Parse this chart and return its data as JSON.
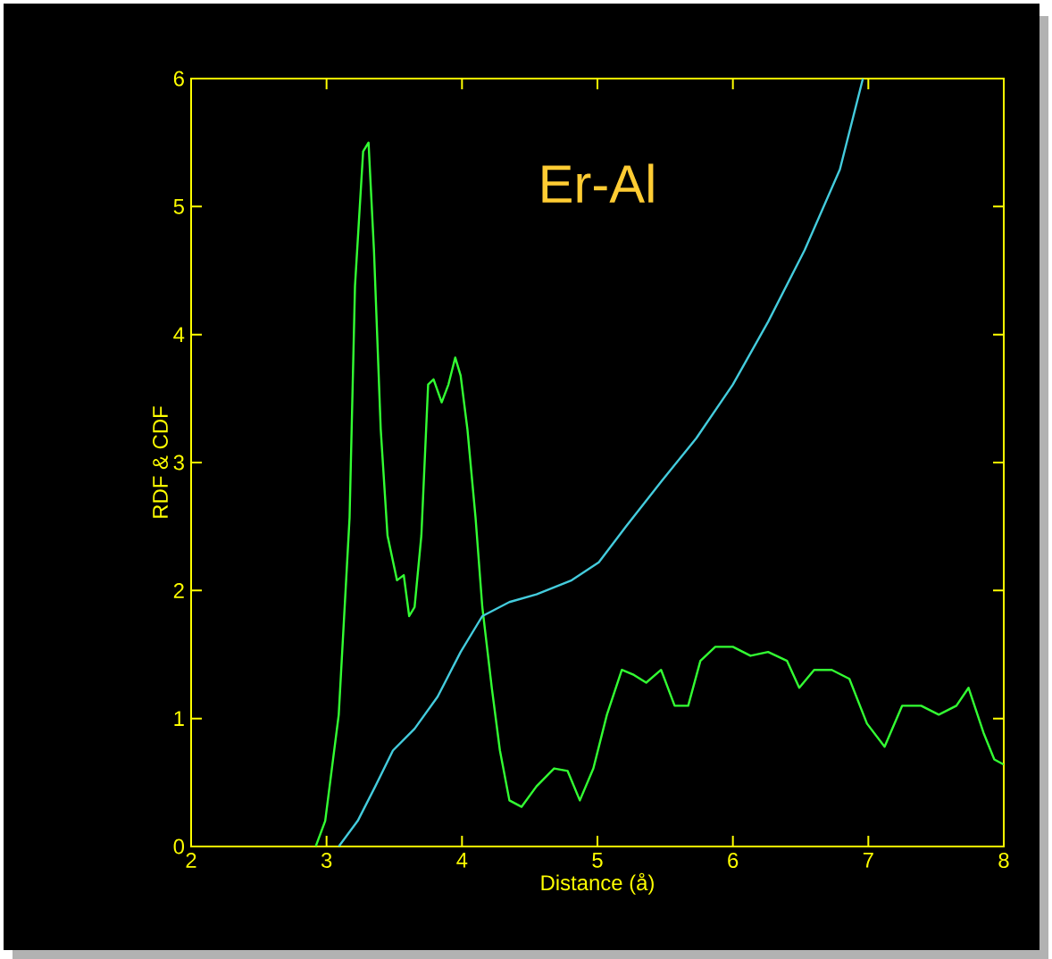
{
  "chart_data": {
    "type": "line",
    "title": "Er-Al",
    "xlabel": "Distance (å)",
    "ylabel": "RDF & CDF",
    "xlim": [
      2,
      8
    ],
    "ylim": [
      0,
      6
    ],
    "xticks": [
      2,
      3,
      4,
      5,
      6,
      7,
      8
    ],
    "yticks": [
      0,
      1,
      2,
      3,
      4,
      5,
      6
    ],
    "marker": "none",
    "line_style": "solid",
    "series": [
      {
        "color": "#33ff33",
        "x": [
          2.92,
          2.99,
          3.09,
          3.17,
          3.21,
          3.27,
          3.31,
          3.35,
          3.4,
          3.45,
          3.52,
          3.57,
          3.61,
          3.65,
          3.7,
          3.75,
          3.79,
          3.85,
          3.9,
          3.95,
          3.99,
          4.04,
          4.1,
          4.15,
          4.22,
          4.28,
          4.35,
          4.44,
          4.55,
          4.68,
          4.78,
          4.87,
          4.97,
          5.07,
          5.18,
          5.27,
          5.36,
          5.47,
          5.57,
          5.67,
          5.76,
          5.87,
          6.0,
          6.13,
          6.26,
          6.4,
          6.49,
          6.6,
          6.73,
          6.86,
          6.99,
          7.12,
          7.25,
          7.39,
          7.52,
          7.65,
          7.74,
          7.85,
          7.93,
          8.0
        ],
        "values": [
          0,
          0.2,
          1.03,
          2.57,
          4.38,
          5.43,
          5.5,
          4.66,
          3.26,
          2.43,
          2.08,
          2.12,
          1.8,
          1.87,
          2.43,
          3.61,
          3.65,
          3.47,
          3.61,
          3.82,
          3.68,
          3.26,
          2.57,
          1.87,
          1.24,
          0.75,
          0.36,
          0.31,
          0.47,
          0.61,
          0.59,
          0.36,
          0.61,
          1.03,
          1.38,
          1.34,
          1.28,
          1.38,
          1.1,
          1.1,
          1.45,
          1.56,
          1.56,
          1.49,
          1.52,
          1.45,
          1.24,
          1.38,
          1.38,
          1.31,
          0.96,
          0.78,
          1.1,
          1.1,
          1.03,
          1.1,
          1.24,
          0.89,
          0.68,
          0.64
        ]
      },
      {
        "color": "#44ccdd",
        "x": [
          3.09,
          3.23,
          3.36,
          3.49,
          3.65,
          3.82,
          3.99,
          4.15,
          4.35,
          4.55,
          4.81,
          5.01,
          5.21,
          5.47,
          5.73,
          6.0,
          6.26,
          6.53,
          6.79,
          6.96
        ],
        "values": [
          0,
          0.2,
          0.47,
          0.75,
          0.92,
          1.17,
          1.52,
          1.8,
          1.91,
          1.97,
          2.08,
          2.22,
          2.5,
          2.85,
          3.19,
          3.61,
          4.1,
          4.66,
          5.29,
          6.0
        ]
      }
    ]
  }
}
